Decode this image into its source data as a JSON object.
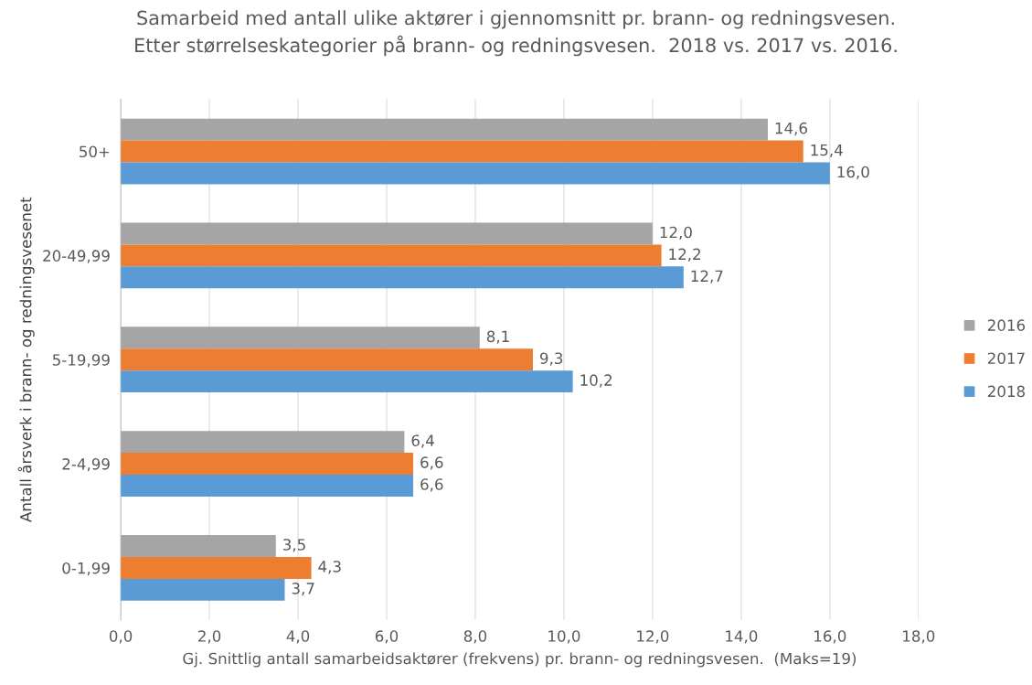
{
  "chart_data": {
    "type": "bar",
    "orientation": "horizontal",
    "title": "Samarbeid med antall ulike aktører i gjennomsnitt pr. brann- og redningsvesen.\nEtter størrelseskategorier på brann- og redningsvesen.  2018 vs. 2017 vs. 2016.",
    "xlabel": "Gj. Snittlig antall samarbeidsaktører (frekvens) pr. brann- og redningsvesen.  (Maks=19)",
    "ylabel": "Antall årsverk i brann- og redningsvesenet",
    "categories": [
      "50+",
      "20-49,99",
      "5-19,99",
      "2-4,99",
      "0-1,99"
    ],
    "series": [
      {
        "name": "2016",
        "color": "#a5a5a5",
        "values": [
          14.6,
          12.0,
          8.1,
          6.4,
          3.5
        ],
        "value_labels": [
          "14,6",
          "12,0",
          "8,1",
          "6,4",
          "3,5"
        ]
      },
      {
        "name": "2017",
        "color": "#ed7d31",
        "values": [
          15.4,
          12.2,
          9.3,
          6.6,
          4.3
        ],
        "value_labels": [
          "15,4",
          "12,2",
          "9,3",
          "6,6",
          "4,3"
        ]
      },
      {
        "name": "2018",
        "color": "#5b9bd5",
        "values": [
          16.0,
          12.7,
          10.2,
          6.6,
          3.7
        ],
        "value_labels": [
          "16,0",
          "12,7",
          "10,2",
          "6,6",
          "3,7"
        ]
      }
    ],
    "xlim": [
      0,
      18
    ],
    "xticks": [
      {
        "value": 0,
        "label": "0,0"
      },
      {
        "value": 2,
        "label": "2,0"
      },
      {
        "value": 4,
        "label": "4,0"
      },
      {
        "value": 6,
        "label": "6,0"
      },
      {
        "value": 8,
        "label": "8,0"
      },
      {
        "value": 10,
        "label": "10,0"
      },
      {
        "value": 12,
        "label": "12,0"
      },
      {
        "value": 14,
        "label": "14,0"
      },
      {
        "value": 16,
        "label": "16,0"
      },
      {
        "value": 18,
        "label": "18,0"
      }
    ],
    "grid": "x",
    "legend": "right"
  }
}
